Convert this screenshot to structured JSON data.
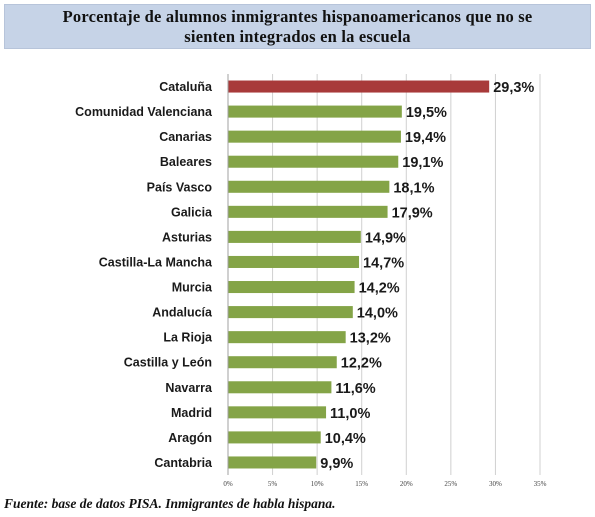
{
  "title": {
    "line1": "Porcentaje de alumnos inmigrantes hispanoamericanos que no se",
    "line2": "sienten integrados en la escuela"
  },
  "footnote": "Fuente: base de datos PISA. Inmigrantes de habla hispana.",
  "colors": {
    "highlight": "#a83a3a",
    "bar": "#84a447",
    "grid": "#d0d0d0",
    "axis": "#a0a0a0"
  },
  "chart_data": {
    "type": "bar",
    "orientation": "horizontal",
    "categories": [
      "Cataluña",
      "Comunidad Valenciana",
      "Canarias",
      "Baleares",
      "País Vasco",
      "Galicia",
      "Asturias",
      "Castilla-La Mancha",
      "Murcia",
      "Andalucía",
      "La Rioja",
      "Castilla y León",
      "Navarra",
      "Madrid",
      "Aragón",
      "Cantabria"
    ],
    "values": [
      29.3,
      19.5,
      19.4,
      19.1,
      18.1,
      17.9,
      14.9,
      14.7,
      14.2,
      14.0,
      13.2,
      12.2,
      11.6,
      11.0,
      10.4,
      9.9
    ],
    "value_labels": [
      "29,3%",
      "19,5%",
      "19,4%",
      "19,1%",
      "18,1%",
      "17,9%",
      "14,9%",
      "14,7%",
      "14,2%",
      "14,0%",
      "13,2%",
      "12,2%",
      "11,6%",
      "11,0%",
      "10,4%",
      "9,9%"
    ],
    "highlight_index": 0,
    "xlim": [
      0,
      35
    ],
    "xticks": [
      0,
      5,
      10,
      15,
      20,
      25,
      30,
      35
    ],
    "xtick_labels": [
      "0%",
      "5%",
      "10%",
      "15%",
      "20%",
      "25%",
      "30%",
      "35%"
    ],
    "grid": true,
    "legend": "none"
  }
}
